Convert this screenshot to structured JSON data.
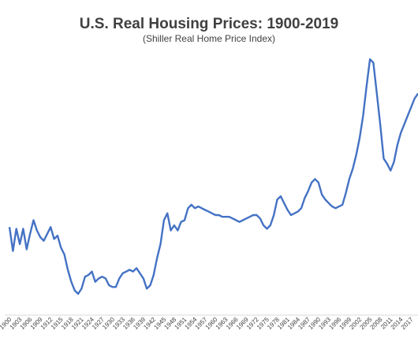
{
  "chart_data": {
    "type": "line",
    "title": "U.S. Real Housing Prices: 1900-2019",
    "subtitle": "(Shiller Real Home Price Index)",
    "xlabel": "",
    "ylabel": "",
    "xlim": [
      1900,
      2019
    ],
    "ylim": [
      55,
      205
    ],
    "grid": false,
    "legend": "none",
    "line_color": "#4472C4",
    "x_ticks": [
      "1900",
      "1903",
      "1906",
      "1909",
      "1912",
      "1915",
      "1918",
      "1921",
      "1924",
      "1927",
      "1930",
      "1933",
      "1936",
      "1939",
      "1942",
      "1945",
      "1948",
      "1951",
      "1954",
      "1957",
      "1960",
      "1963",
      "1966",
      "1969",
      "1972",
      "1975",
      "1978",
      "1981",
      "1984",
      "1987",
      "1990",
      "1993",
      "1996",
      "1999",
      "2002",
      "2005",
      "2008",
      "2011",
      "2014",
      "2017"
    ],
    "series": [
      {
        "points": [
          [
            1900,
            100
          ],
          [
            1901,
            86
          ],
          [
            1902,
            99
          ],
          [
            1903,
            90
          ],
          [
            1904,
            99
          ],
          [
            1905,
            87
          ],
          [
            1906,
            96
          ],
          [
            1907,
            104
          ],
          [
            1908,
            98
          ],
          [
            1909,
            94
          ],
          [
            1910,
            92
          ],
          [
            1911,
            96
          ],
          [
            1912,
            100
          ],
          [
            1913,
            93
          ],
          [
            1914,
            95
          ],
          [
            1915,
            88
          ],
          [
            1916,
            84
          ],
          [
            1917,
            75
          ],
          [
            1918,
            68
          ],
          [
            1919,
            63
          ],
          [
            1920,
            61
          ],
          [
            1921,
            64
          ],
          [
            1922,
            71
          ],
          [
            1923,
            72
          ],
          [
            1924,
            74
          ],
          [
            1925,
            68
          ],
          [
            1926,
            70
          ],
          [
            1927,
            71
          ],
          [
            1928,
            70
          ],
          [
            1929,
            66
          ],
          [
            1930,
            65
          ],
          [
            1931,
            65
          ],
          [
            1932,
            70
          ],
          [
            1933,
            73
          ],
          [
            1934,
            74
          ],
          [
            1935,
            75
          ],
          [
            1936,
            74
          ],
          [
            1937,
            76
          ],
          [
            1938,
            73
          ],
          [
            1939,
            70
          ],
          [
            1940,
            64
          ],
          [
            1941,
            66
          ],
          [
            1942,
            72
          ],
          [
            1943,
            82
          ],
          [
            1944,
            90
          ],
          [
            1945,
            104
          ],
          [
            1946,
            108
          ],
          [
            1947,
            98
          ],
          [
            1948,
            101
          ],
          [
            1949,
            98
          ],
          [
            1950,
            103
          ],
          [
            1951,
            104
          ],
          [
            1952,
            111
          ],
          [
            1953,
            113
          ],
          [
            1954,
            111
          ],
          [
            1955,
            112
          ],
          [
            1956,
            111
          ],
          [
            1957,
            110
          ],
          [
            1958,
            109
          ],
          [
            1959,
            108
          ],
          [
            1960,
            107
          ],
          [
            1961,
            107
          ],
          [
            1962,
            106
          ],
          [
            1963,
            106
          ],
          [
            1964,
            106
          ],
          [
            1965,
            105
          ],
          [
            1966,
            104
          ],
          [
            1967,
            103
          ],
          [
            1968,
            104
          ],
          [
            1969,
            105
          ],
          [
            1970,
            106
          ],
          [
            1971,
            107
          ],
          [
            1972,
            107
          ],
          [
            1973,
            105
          ],
          [
            1974,
            101
          ],
          [
            1975,
            99
          ],
          [
            1976,
            101
          ],
          [
            1977,
            107
          ],
          [
            1978,
            116
          ],
          [
            1979,
            118
          ],
          [
            1980,
            114
          ],
          [
            1981,
            110
          ],
          [
            1982,
            107
          ],
          [
            1983,
            108
          ],
          [
            1984,
            109
          ],
          [
            1985,
            111
          ],
          [
            1986,
            117
          ],
          [
            1987,
            121
          ],
          [
            1988,
            126
          ],
          [
            1989,
            128
          ],
          [
            1990,
            126
          ],
          [
            1991,
            119
          ],
          [
            1992,
            116
          ],
          [
            1993,
            114
          ],
          [
            1994,
            112
          ],
          [
            1995,
            111
          ],
          [
            1996,
            112
          ],
          [
            1997,
            113
          ],
          [
            1998,
            120
          ],
          [
            1999,
            128
          ],
          [
            2000,
            134
          ],
          [
            2001,
            142
          ],
          [
            2002,
            152
          ],
          [
            2003,
            165
          ],
          [
            2004,
            182
          ],
          [
            2005,
            198
          ],
          [
            2006,
            196
          ],
          [
            2007,
            178
          ],
          [
            2008,
            160
          ],
          [
            2009,
            140
          ],
          [
            2010,
            137
          ],
          [
            2011,
            133
          ],
          [
            2012,
            138
          ],
          [
            2013,
            148
          ],
          [
            2014,
            155
          ],
          [
            2015,
            160
          ],
          [
            2016,
            165
          ],
          [
            2017,
            170
          ],
          [
            2018,
            175
          ],
          [
            2019,
            178
          ]
        ]
      }
    ]
  }
}
